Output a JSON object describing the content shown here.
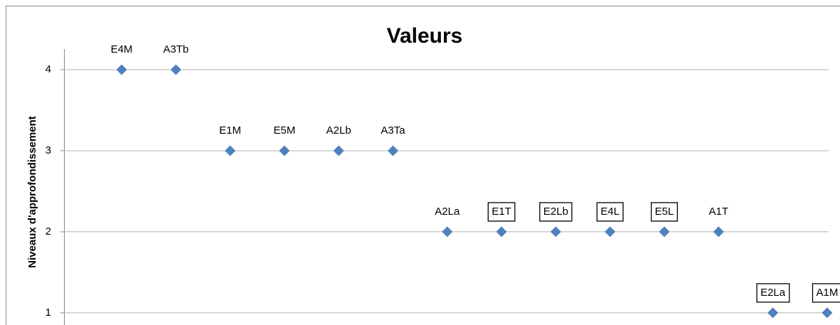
{
  "chart_data": {
    "type": "scatter",
    "title": "Valeurs",
    "y_label": "Niveaux d'approfondissement",
    "categories": [
      "E4M",
      "A3Tb",
      "E1M",
      "E5M",
      "A2Lb",
      "A3Ta",
      "A2La",
      "E1T",
      "E2Lb",
      "E4L",
      "E5L",
      "A1T",
      "E2La",
      "A1M"
    ],
    "values": [
      4,
      4,
      3,
      3,
      3,
      3,
      2,
      2,
      2,
      2,
      2,
      2,
      1,
      1
    ],
    "label_boxed": [
      false,
      false,
      false,
      false,
      false,
      false,
      false,
      true,
      true,
      true,
      true,
      false,
      true,
      true
    ],
    "color": "#4f81bd",
    "marker": "diamond",
    "ylim": [
      0.85,
      4.25
    ],
    "yticks": [
      1,
      2,
      3,
      4
    ],
    "grid": true
  }
}
